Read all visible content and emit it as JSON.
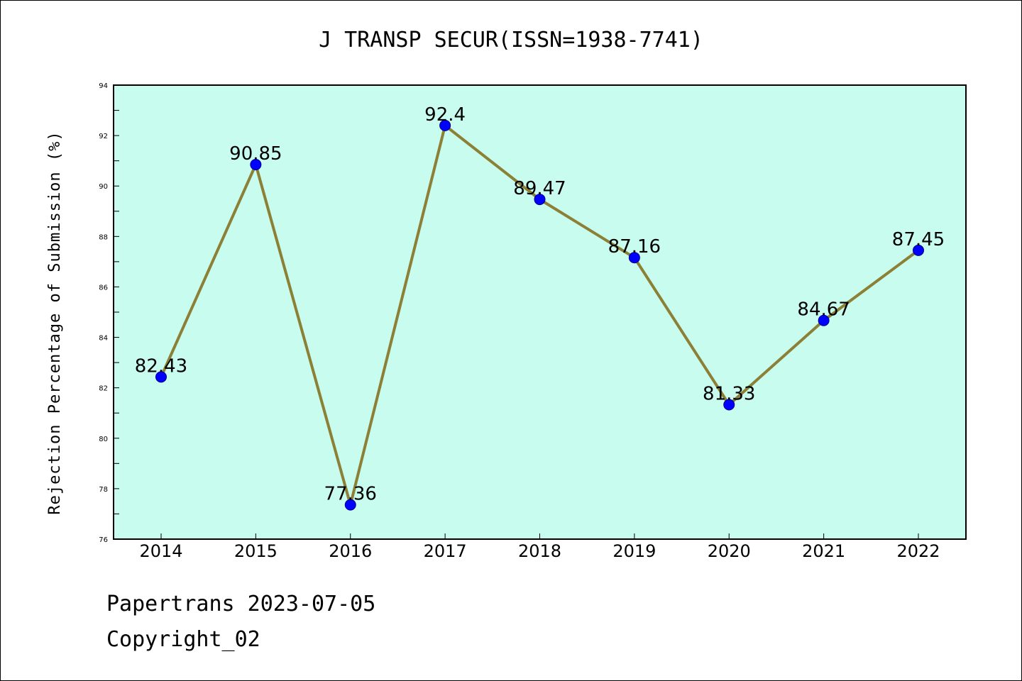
{
  "chart_data": {
    "type": "line",
    "title": "J TRANSP SECUR(ISSN=1938-7741)",
    "ylabel": "Rejection Percentage of Submission (%)",
    "xlabel": "",
    "categories": [
      "2014",
      "2015",
      "2016",
      "2017",
      "2018",
      "2019",
      "2020",
      "2021",
      "2022"
    ],
    "values": [
      82.43,
      90.85,
      77.36,
      92.4,
      89.47,
      87.16,
      81.33,
      84.67,
      87.45
    ],
    "data_labels": [
      "82.43",
      "90.85",
      "77.36",
      "92.4",
      "89.47",
      "87.16",
      "81.33",
      "84.67",
      "87.45"
    ],
    "ylim": [
      76,
      94
    ],
    "yticks": [
      "76",
      "78",
      "80",
      "82",
      "84",
      "86",
      "88",
      "90",
      "92",
      "94"
    ],
    "grid": false,
    "legend": "none",
    "colors": {
      "plot_background": "#c8fcee",
      "line": "#8b8036",
      "marker": "#0000ff",
      "marker_edge": "#00008b"
    }
  },
  "footer": {
    "watermark": "Papertrans 2023-07-05",
    "copyright": "Copyright_02"
  }
}
